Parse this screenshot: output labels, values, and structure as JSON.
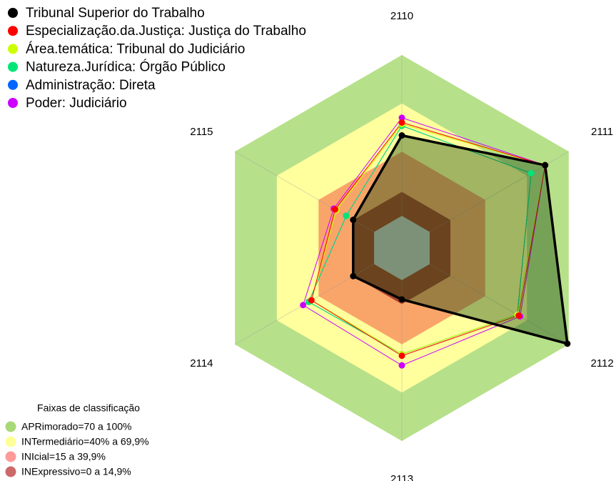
{
  "chart_data": {
    "type": "radar",
    "categories": [
      "2110",
      "2111",
      "2112",
      "2113",
      "2114",
      "2115"
    ],
    "ylim": [
      -20,
      100
    ],
    "series": [
      {
        "name": "Tribunal Superior do Trabalho",
        "color": "#000000",
        "values": [
          50,
          83,
          99,
          12,
          15,
          15
        ]
      },
      {
        "name": "Especialização.da.Justiça: Justiça do Trabalho",
        "color": "#ff0000",
        "values": [
          58,
          83,
          64,
          47,
          45,
          28
        ]
      },
      {
        "name": "Área.temática: Tribunal do Judiciário",
        "color": "#ccff00",
        "values": [
          57,
          83,
          63,
          46,
          45,
          27
        ]
      },
      {
        "name": "Natureza.Jurídica: Órgão Público",
        "color": "#00e676",
        "values": [
          56,
          73,
          63,
          46,
          47,
          20
        ]
      },
      {
        "name": "Administração: Direta",
        "color": "#0066ff",
        "values": [
          56,
          73,
          63,
          46,
          47,
          20
        ]
      },
      {
        "name": "Poder: Judiciário",
        "color": "#cc00ff",
        "values": [
          61,
          83,
          65,
          53,
          51,
          29
        ]
      }
    ],
    "bands_title": "Faixas de classificação",
    "bands": [
      {
        "name": "APRimorado=70 a 100%",
        "max": 100,
        "color": "#b7e08a",
        "legend_color": "#a8d878"
      },
      {
        "name": "INTermediário=40% a 69,9%",
        "max": 69.9,
        "color": "#ffff9e",
        "legend_color": "#ffff99"
      },
      {
        "name": "INIcial=15 a 39,9%",
        "max": 39.9,
        "color": "#f9a56a",
        "legend_color": "#ff9a9a"
      },
      {
        "name": "INExpressivo=0 a 14,9%",
        "max": 14.9,
        "color": "#a5422c",
        "legend_color": "#cc6a6a"
      }
    ]
  }
}
